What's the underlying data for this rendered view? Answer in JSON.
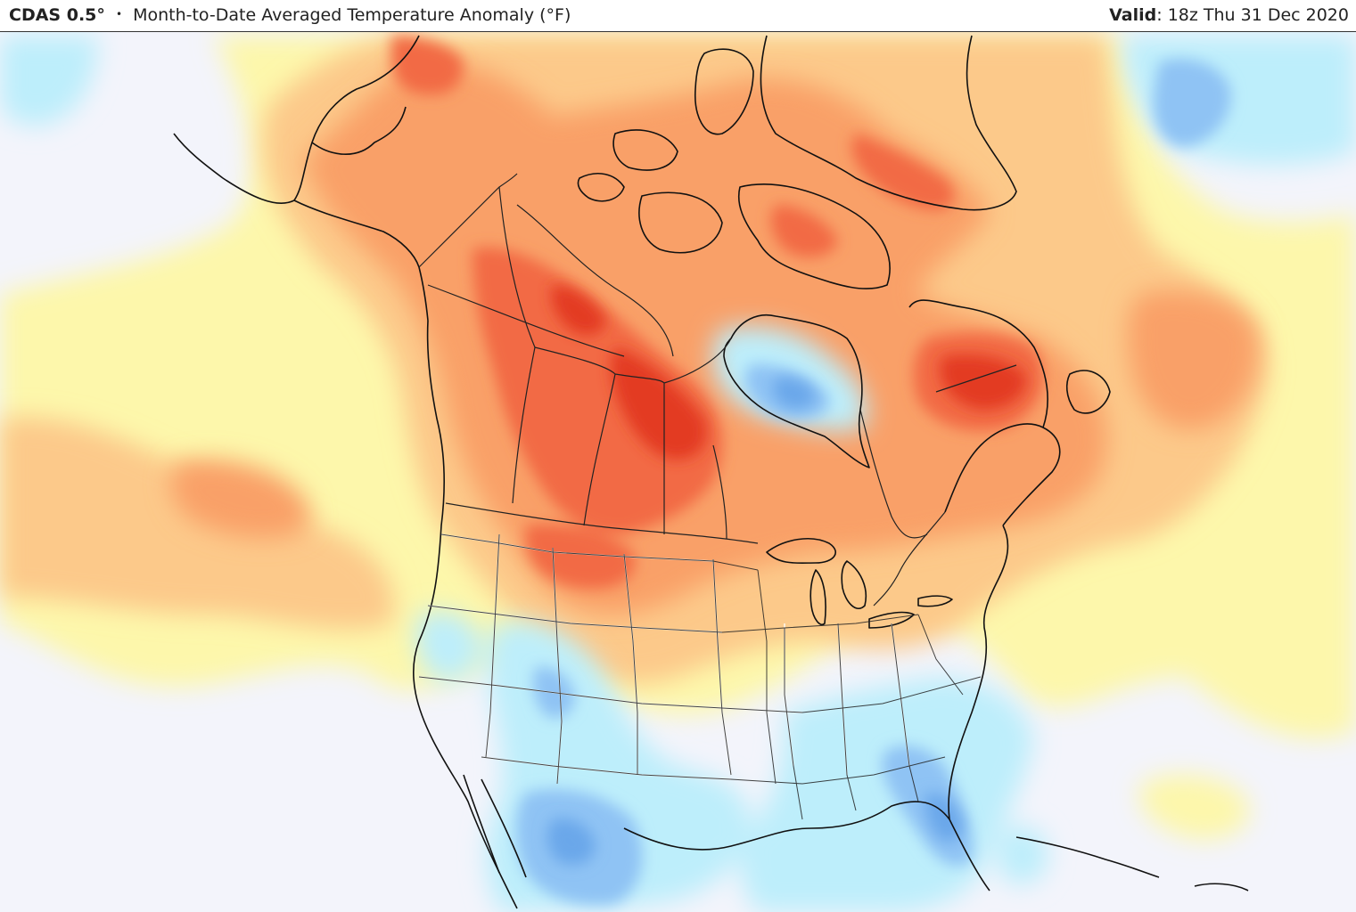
{
  "header": {
    "model": "CDAS 0.5°",
    "separator": "•",
    "product": "Month-to-Date Averaged Temperature Anomaly (°F)",
    "valid_label": "Valid",
    "valid_time": ": 18z Thu 31 Dec 2020"
  },
  "map": {
    "region": "North America",
    "colors": {
      "background": "#f3f4fb",
      "light_yellow": "#fdf7ab",
      "orange_light": "#fcc98a",
      "orange": "#f9a068",
      "red_orange": "#f26b45",
      "red": "#e33b24",
      "light_blue": "#bdeefb",
      "blue": "#8fc3f4",
      "deep_blue": "#6aa7ea",
      "outline": "#111111",
      "state_line": "#222222"
    }
  }
}
